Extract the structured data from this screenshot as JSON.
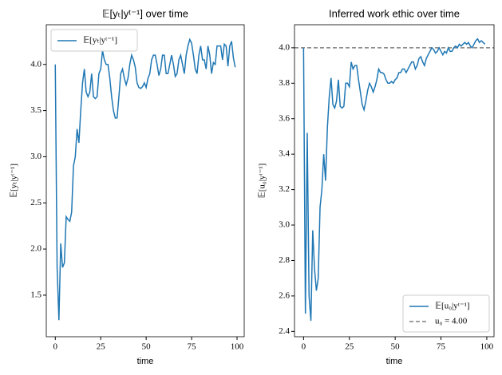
{
  "chart_data": [
    {
      "type": "line",
      "title": "𝔼[yₜ|yᵗ⁻¹] over time",
      "x_label": "time",
      "y_label": "𝔼[yₜ|yᵗ⁻¹]",
      "x": [
        0,
        1,
        2,
        3,
        4,
        5,
        6,
        7,
        8,
        9,
        10,
        11,
        12,
        13,
        14,
        15,
        16,
        17,
        18,
        19,
        20,
        21,
        22,
        23,
        24,
        25,
        26,
        27,
        28,
        29,
        30,
        31,
        32,
        33,
        34,
        35,
        36,
        37,
        38,
        39,
        40,
        41,
        42,
        43,
        44,
        45,
        46,
        47,
        48,
        49,
        50,
        51,
        52,
        53,
        54,
        55,
        56,
        57,
        58,
        59,
        60,
        61,
        62,
        63,
        64,
        65,
        66,
        67,
        68,
        69,
        70,
        71,
        72,
        73,
        74,
        75,
        76,
        77,
        78,
        79,
        80,
        81,
        82,
        83,
        84,
        85,
        86,
        87,
        88,
        89,
        90,
        91,
        92,
        93,
        94,
        95,
        96,
        97,
        98,
        99
      ],
      "series": [
        {
          "name": "𝔼[yₜ|yᵗ⁻¹]",
          "color": "#1f77b4",
          "values": [
            4.0,
            1.8,
            1.23,
            2.06,
            1.8,
            1.85,
            2.35,
            2.32,
            2.3,
            2.4,
            2.9,
            3.0,
            3.3,
            3.15,
            3.5,
            3.8,
            3.95,
            3.7,
            3.65,
            3.7,
            3.9,
            3.65,
            3.63,
            3.65,
            3.9,
            3.95,
            4.15,
            4.05,
            4.0,
            4.0,
            3.85,
            3.65,
            3.5,
            3.42,
            3.42,
            3.65,
            3.9,
            3.95,
            3.85,
            3.78,
            3.85,
            4.0,
            4.1,
            4.05,
            3.97,
            3.8,
            3.75,
            3.74,
            3.76,
            3.8,
            3.75,
            3.85,
            3.9,
            4.05,
            4.1,
            4.1,
            4.0,
            3.88,
            3.95,
            4.1,
            4.1,
            3.9,
            3.9,
            4.0,
            4.1,
            4.0,
            3.87,
            3.9,
            4.05,
            4.1,
            4.0,
            3.9,
            4.1,
            4.2,
            4.27,
            4.23,
            4.1,
            3.95,
            3.9,
            4.1,
            4.2,
            4.05,
            4.05,
            3.95,
            4.2,
            4.1,
            3.9,
            4.02,
            4.0,
            4.2,
            4.2,
            4.2,
            4.05,
            4.22,
            4.2,
            3.98,
            4.2,
            4.25,
            4.07,
            3.97
          ]
        }
      ],
      "xlim": [
        -4.95,
        103.95
      ],
      "xticks": [
        0,
        25,
        50,
        75,
        100
      ],
      "ylim": [
        1.05,
        4.43
      ],
      "yticks": [
        {
          "value": 1.5,
          "label": "1.5"
        },
        {
          "value": 2.0,
          "label": "2.0"
        },
        {
          "value": 2.5,
          "label": "2.5"
        },
        {
          "value": 3.0,
          "label": "3.0"
        },
        {
          "value": 3.5,
          "label": "3.5"
        },
        {
          "value": 4.0,
          "label": "4.0"
        }
      ],
      "legend": "upper left"
    },
    {
      "type": "line",
      "title": "Inferred work ethic over time",
      "x_label": "time",
      "y_label": "𝔼[u₀|yᵗ⁻¹]",
      "x": [
        0,
        1,
        2,
        3,
        4,
        5,
        6,
        7,
        8,
        9,
        10,
        11,
        12,
        13,
        14,
        15,
        16,
        17,
        18,
        19,
        20,
        21,
        22,
        23,
        24,
        25,
        26,
        27,
        28,
        29,
        30,
        31,
        32,
        33,
        34,
        35,
        36,
        37,
        38,
        39,
        40,
        41,
        42,
        43,
        44,
        45,
        46,
        47,
        48,
        49,
        50,
        51,
        52,
        53,
        54,
        55,
        56,
        57,
        58,
        59,
        60,
        61,
        62,
        63,
        64,
        65,
        66,
        67,
        68,
        69,
        70,
        71,
        72,
        73,
        74,
        75,
        76,
        77,
        78,
        79,
        80,
        81,
        82,
        83,
        84,
        85,
        86,
        87,
        88,
        89,
        90,
        91,
        92,
        93,
        94,
        95,
        96,
        97,
        98,
        99
      ],
      "series": [
        {
          "name": "𝔼[u₀|yᵗ⁻¹]",
          "color": "#1f77b4",
          "values": [
            4.0,
            2.5,
            3.52,
            2.6,
            2.46,
            2.97,
            2.75,
            2.63,
            2.7,
            3.1,
            3.2,
            3.4,
            3.25,
            3.55,
            3.72,
            3.83,
            3.68,
            3.66,
            3.7,
            3.82,
            3.67,
            3.66,
            3.67,
            3.8,
            3.8,
            3.78,
            3.92,
            3.88,
            3.9,
            3.9,
            3.82,
            3.75,
            3.68,
            3.65,
            3.7,
            3.76,
            3.8,
            3.78,
            3.75,
            3.78,
            3.82,
            3.88,
            3.86,
            3.86,
            3.85,
            3.82,
            3.8,
            3.8,
            3.81,
            3.8,
            3.82,
            3.83,
            3.86,
            3.86,
            3.88,
            3.88,
            3.86,
            3.88,
            3.9,
            3.92,
            3.92,
            3.88,
            3.9,
            3.94,
            3.95,
            3.92,
            3.9,
            3.94,
            3.96,
            3.98,
            4.0,
            3.99,
            3.97,
            3.98,
            4.0,
            3.98,
            3.96,
            3.98,
            3.97,
            4.0,
            3.98,
            3.98,
            4.0,
            4.01,
            4.0,
            4.02,
            4.01,
            4.02,
            4.03,
            4.02,
            4.03,
            4.01,
            4.0,
            4.02,
            4.04,
            4.05,
            4.03,
            4.04,
            4.03,
            4.02
          ]
        }
      ],
      "hline": {
        "name": "u₀ = 4.00",
        "value": 4.0,
        "color": "#7f7f7f",
        "dashed": true
      },
      "xlim": [
        -4.95,
        103.95
      ],
      "xticks": [
        0,
        25,
        50,
        75,
        100
      ],
      "ylim": [
        2.37,
        4.13
      ],
      "yticks": [
        {
          "value": 2.4,
          "label": "2.4"
        },
        {
          "value": 2.6,
          "label": "2.6"
        },
        {
          "value": 2.8,
          "label": "2.8"
        },
        {
          "value": 3.0,
          "label": "3.0"
        },
        {
          "value": 3.2,
          "label": "3.2"
        },
        {
          "value": 3.4,
          "label": "3.4"
        },
        {
          "value": 3.6,
          "label": "3.6"
        },
        {
          "value": 3.8,
          "label": "3.8"
        },
        {
          "value": 4.0,
          "label": "4.0"
        }
      ],
      "legend": "lower right"
    }
  ]
}
